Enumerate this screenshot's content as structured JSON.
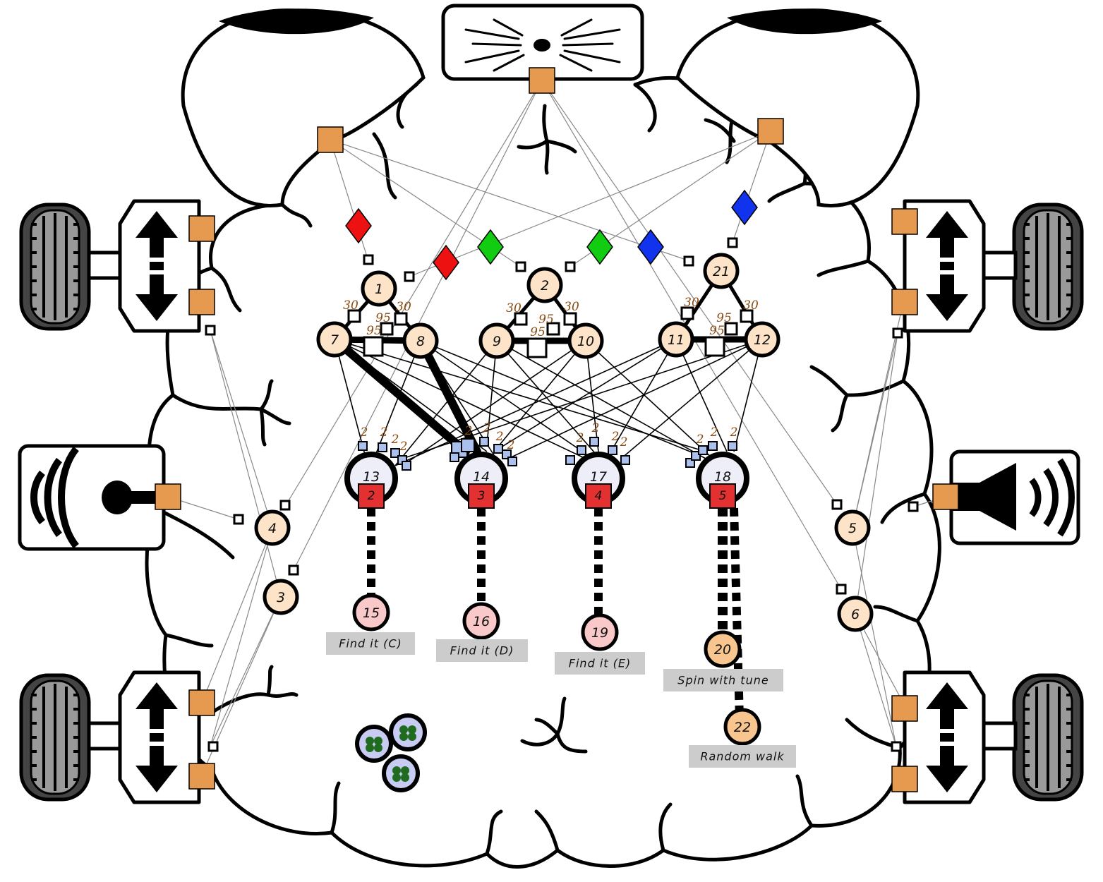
{
  "colors": {
    "background": "#ffffff",
    "outline": "#000000",
    "port_orange": "#e69a50",
    "node_fill": "#fde3c8",
    "pink_node_fill": "#f9c9c9",
    "orange_node_fill": "#f8c58e",
    "big_node_fill": "#eeeef8",
    "red_square": "#e33131",
    "diamond_red": "#ee1111",
    "diamond_green": "#11cc11",
    "diamond_blue": "#1133ee",
    "synapse_blue": "#aac0ee",
    "weight_text": "#8a4a10",
    "caption_bg": "#cccccc",
    "tire_gray": "#888888"
  },
  "icons": {
    "camera": "camera-icon",
    "microphone": "microphone-icon",
    "speaker": "speaker-icon",
    "motor": "motor-arrow-icon",
    "wheel": "wheel-icon",
    "brain": "brain-outline",
    "cluster": "clover-cluster-icon"
  },
  "nodes": {
    "n1": "1",
    "n2": "2",
    "n3": "3",
    "n4": "4",
    "n5": "5",
    "n6": "6",
    "n7": "7",
    "n8": "8",
    "n9": "9",
    "n10": "10",
    "n11": "11",
    "n12": "12",
    "n13": "13",
    "n14": "14",
    "n15": "15",
    "n16": "16",
    "n17": "17",
    "n18": "18",
    "n19": "19",
    "n20": "20",
    "n21": "21",
    "n22": "22"
  },
  "red_squares": {
    "r13": "2",
    "r14": "3",
    "r17": "4",
    "r18": "5"
  },
  "weights": {
    "w30": "30",
    "w95": "95",
    "w2": "2"
  },
  "captions": {
    "c15": "Find it (C)",
    "c16": "Find it (D)",
    "c19": "Find it (E)",
    "c20": "Spin with tune",
    "c22": "Random walk"
  }
}
